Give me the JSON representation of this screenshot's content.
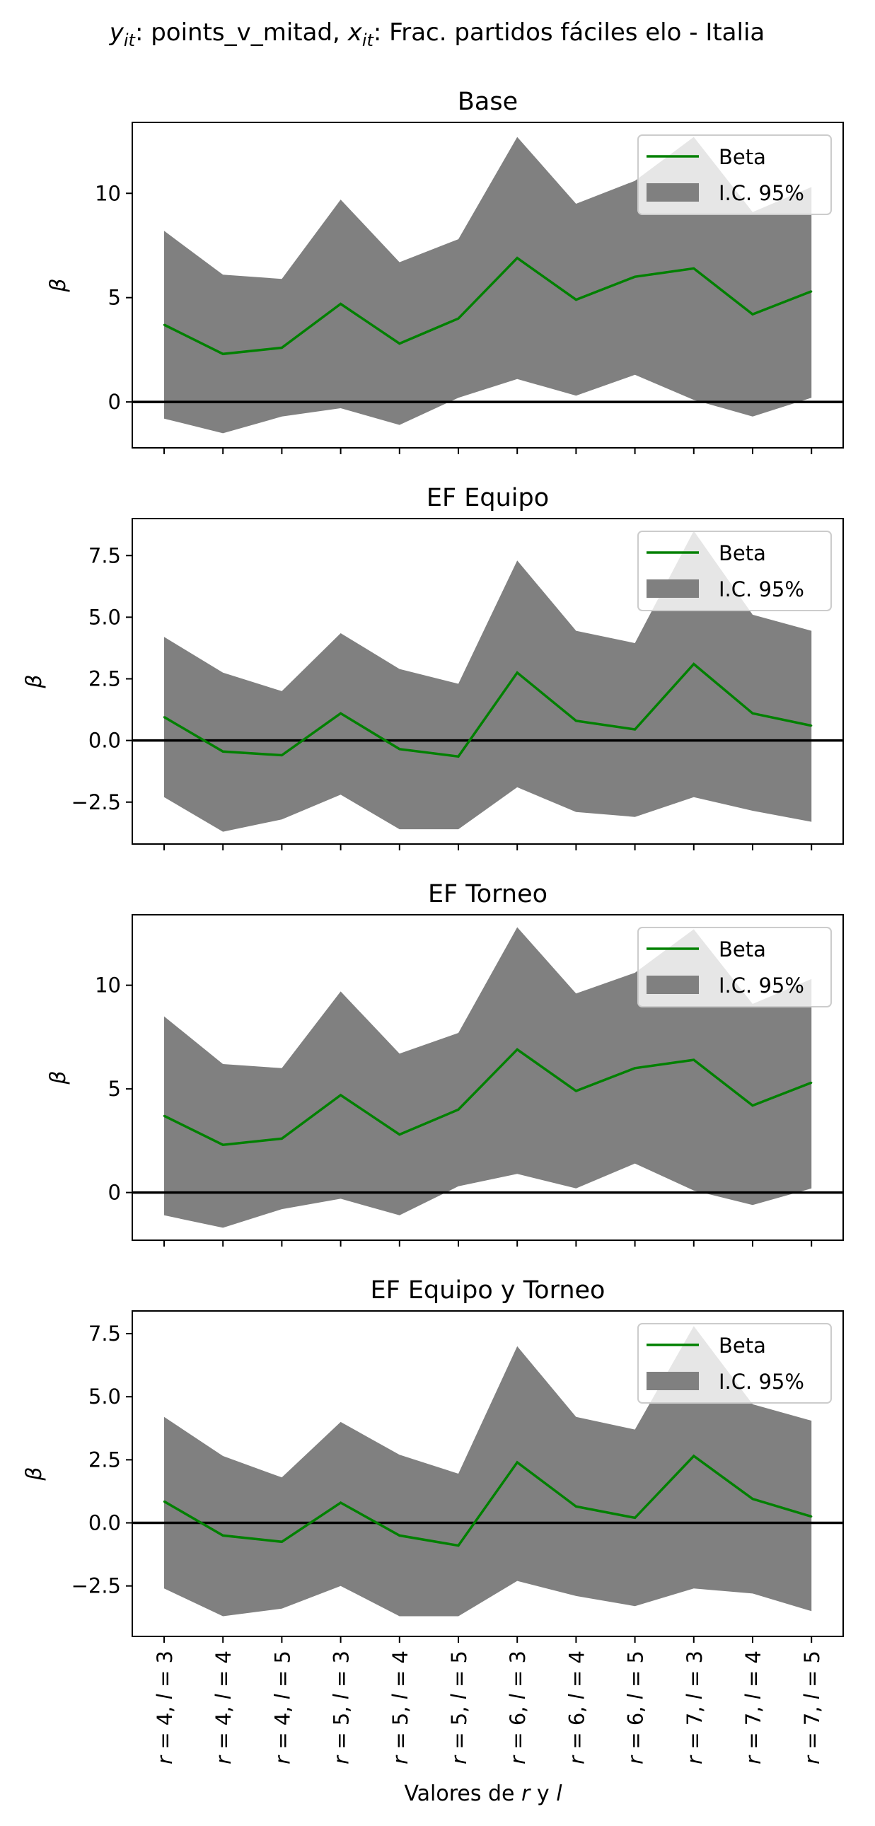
{
  "suptitle": {
    "y_var": "y",
    "y_sub": "it",
    "y_text": ": points_v_mitad, ",
    "x_var": "x",
    "x_sub": "it",
    "x_text": ": Frac. partidos fáciles elo - Italia"
  },
  "xlabel": {
    "prefix": "Valores de ",
    "r": "r",
    "mid": " y ",
    "l": "l"
  },
  "legend": {
    "line": "Beta",
    "band": "I.C. 95%"
  },
  "colors": {
    "line": "#008000",
    "band": "#808080",
    "zero": "#000000"
  },
  "chart_data": [
    {
      "type": "line",
      "title": "Base",
      "ylabel": "β",
      "categories": [
        "r = 4, l = 3",
        "r = 4, l = 4",
        "r = 4, l = 5",
        "r = 5, l = 3",
        "r = 5, l = 4",
        "r = 5, l = 5",
        "r = 6, l = 3",
        "r = 6, l = 4",
        "r = 6, l = 5",
        "r = 7, l = 3",
        "r = 7, l = 4",
        "r = 7, l = 5"
      ],
      "yticks": [
        0,
        5,
        10
      ],
      "ytick_labels": [
        "0",
        "5",
        "10"
      ],
      "ylim": [
        -2.2,
        13.4
      ],
      "series": [
        {
          "name": "Beta",
          "values": [
            3.7,
            2.3,
            2.6,
            4.7,
            2.8,
            4.0,
            6.9,
            4.9,
            6.0,
            6.4,
            4.2,
            5.3
          ]
        },
        {
          "name": "I.C. 95%",
          "lower": [
            -0.8,
            -1.5,
            -0.7,
            -0.3,
            -1.1,
            0.2,
            1.1,
            0.3,
            1.3,
            0.1,
            -0.7,
            0.2
          ],
          "upper": [
            8.2,
            6.1,
            5.9,
            9.7,
            6.7,
            7.8,
            12.7,
            9.5,
            10.6,
            12.7,
            9.1,
            10.3
          ]
        }
      ]
    },
    {
      "type": "line",
      "title": "EF Equipo",
      "ylabel": "β",
      "categories": [
        "r = 4, l = 3",
        "r = 4, l = 4",
        "r = 4, l = 5",
        "r = 5, l = 3",
        "r = 5, l = 4",
        "r = 5, l = 5",
        "r = 6, l = 3",
        "r = 6, l = 4",
        "r = 6, l = 5",
        "r = 7, l = 3",
        "r = 7, l = 4",
        "r = 7, l = 5"
      ],
      "yticks": [
        -2.5,
        0.0,
        2.5,
        5.0,
        7.5
      ],
      "ytick_labels": [
        "−2.5",
        "0.0",
        "2.5",
        "5.0",
        "7.5"
      ],
      "ylim": [
        -4.2,
        9.0
      ],
      "series": [
        {
          "name": "Beta",
          "values": [
            0.95,
            -0.45,
            -0.6,
            1.1,
            -0.35,
            -0.65,
            2.75,
            0.8,
            0.45,
            3.1,
            1.1,
            0.6
          ]
        },
        {
          "name": "I.C. 95%",
          "lower": [
            -2.3,
            -3.7,
            -3.2,
            -2.2,
            -3.6,
            -3.6,
            -1.9,
            -2.9,
            -3.1,
            -2.3,
            -2.85,
            -3.3
          ],
          "upper": [
            4.2,
            2.75,
            2.0,
            4.35,
            2.9,
            2.3,
            7.3,
            4.45,
            3.95,
            8.5,
            5.1,
            4.45
          ]
        }
      ]
    },
    {
      "type": "line",
      "title": "EF Torneo",
      "ylabel": "β",
      "categories": [
        "r = 4, l = 3",
        "r = 4, l = 4",
        "r = 4, l = 5",
        "r = 5, l = 3",
        "r = 5, l = 4",
        "r = 5, l = 5",
        "r = 6, l = 3",
        "r = 6, l = 4",
        "r = 6, l = 5",
        "r = 7, l = 3",
        "r = 7, l = 4",
        "r = 7, l = 5"
      ],
      "yticks": [
        0,
        5,
        10
      ],
      "ytick_labels": [
        "0",
        "5",
        "10"
      ],
      "ylim": [
        -2.3,
        13.4
      ],
      "series": [
        {
          "name": "Beta",
          "values": [
            3.7,
            2.3,
            2.6,
            4.7,
            2.8,
            4.0,
            6.9,
            4.9,
            6.0,
            6.4,
            4.2,
            5.3
          ]
        },
        {
          "name": "I.C. 95%",
          "lower": [
            -1.1,
            -1.7,
            -0.8,
            -0.3,
            -1.1,
            0.3,
            0.9,
            0.2,
            1.4,
            0.1,
            -0.6,
            0.2
          ],
          "upper": [
            8.5,
            6.2,
            6.0,
            9.7,
            6.7,
            7.7,
            12.8,
            9.6,
            10.6,
            12.7,
            9.1,
            10.3
          ]
        }
      ]
    },
    {
      "type": "line",
      "title": "EF Equipo y Torneo",
      "ylabel": "β",
      "categories": [
        "r = 4, l = 3",
        "r = 4, l = 4",
        "r = 4, l = 5",
        "r = 5, l = 3",
        "r = 5, l = 4",
        "r = 5, l = 5",
        "r = 6, l = 3",
        "r = 6, l = 4",
        "r = 6, l = 5",
        "r = 7, l = 3",
        "r = 7, l = 4",
        "r = 7, l = 5"
      ],
      "yticks": [
        -2.5,
        0.0,
        2.5,
        5.0,
        7.5
      ],
      "ytick_labels": [
        "−2.5",
        "0.0",
        "2.5",
        "5.0",
        "7.5"
      ],
      "ylim": [
        -4.5,
        8.4
      ],
      "series": [
        {
          "name": "Beta",
          "values": [
            0.85,
            -0.5,
            -0.75,
            0.8,
            -0.5,
            -0.9,
            2.4,
            0.65,
            0.2,
            2.65,
            0.95,
            0.25
          ]
        },
        {
          "name": "I.C. 95%",
          "lower": [
            -2.6,
            -3.7,
            -3.4,
            -2.5,
            -3.7,
            -3.7,
            -2.3,
            -2.9,
            -3.3,
            -2.6,
            -2.8,
            -3.5
          ],
          "upper": [
            4.2,
            2.65,
            1.8,
            4.0,
            2.7,
            1.95,
            7.0,
            4.2,
            3.7,
            7.8,
            4.7,
            4.05
          ]
        }
      ]
    }
  ]
}
